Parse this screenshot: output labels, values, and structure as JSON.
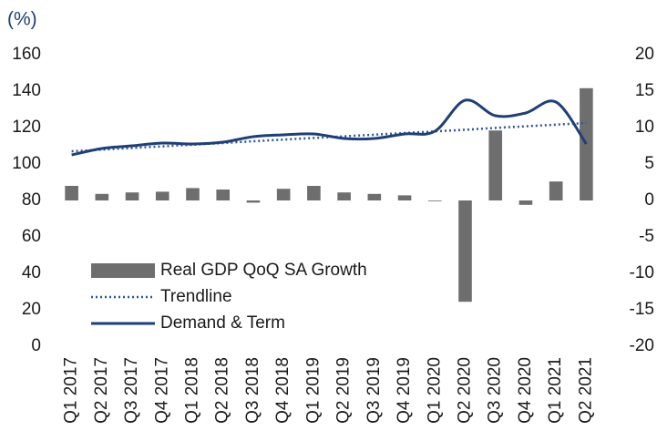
{
  "chart_data": {
    "type": "bar",
    "y_label": "(%)",
    "categories": [
      "Q1 2017",
      "Q2 2017",
      "Q3 2017",
      "Q4 2017",
      "Q1 2018",
      "Q2 2018",
      "Q3 2018",
      "Q4 2018",
      "Q1 2019",
      "Q2 2019",
      "Q3 2019",
      "Q4 2019",
      "Q1 2020",
      "Q2 2020",
      "Q3 2020",
      "Q4 2020",
      "Q1 2021",
      "Q2 2021"
    ],
    "series": [
      {
        "name": "Real GDP QoQ SA Growth",
        "type": "bar",
        "axis": "y2",
        "color": "#6e6e6e",
        "values": [
          2.0,
          0.9,
          1.1,
          1.2,
          1.7,
          1.5,
          -0.3,
          1.6,
          2.0,
          1.1,
          0.9,
          0.7,
          -0.1,
          -13.9,
          9.6,
          -0.6,
          2.6,
          15.4
        ]
      },
      {
        "name": "Trendline",
        "type": "line",
        "style": "dotted",
        "color": "#2f5597",
        "values": [
          107,
          107.9,
          108.8,
          109.7,
          110.6,
          111.5,
          112.5,
          113.4,
          114.3,
          115.2,
          116.1,
          117.0,
          117.9,
          118.8,
          119.8,
          120.7,
          121.6,
          122.5
        ]
      },
      {
        "name": "Demand & Term",
        "type": "line",
        "style": "solid",
        "color": "#1f3f77",
        "values": [
          105,
          108.5,
          110,
          111.5,
          111,
          112,
          115,
          116,
          116.5,
          114,
          114,
          116.5,
          118,
          135,
          126.5,
          128,
          134,
          111
        ]
      }
    ],
    "ylim": [
      0,
      160
    ],
    "yticks": [
      0,
      20,
      40,
      60,
      80,
      100,
      120,
      140,
      160
    ],
    "y2lim": [
      -20,
      20
    ],
    "y2ticks": [
      -20,
      -15,
      -10,
      -5,
      0,
      5,
      10,
      15,
      20
    ],
    "grid": false
  }
}
